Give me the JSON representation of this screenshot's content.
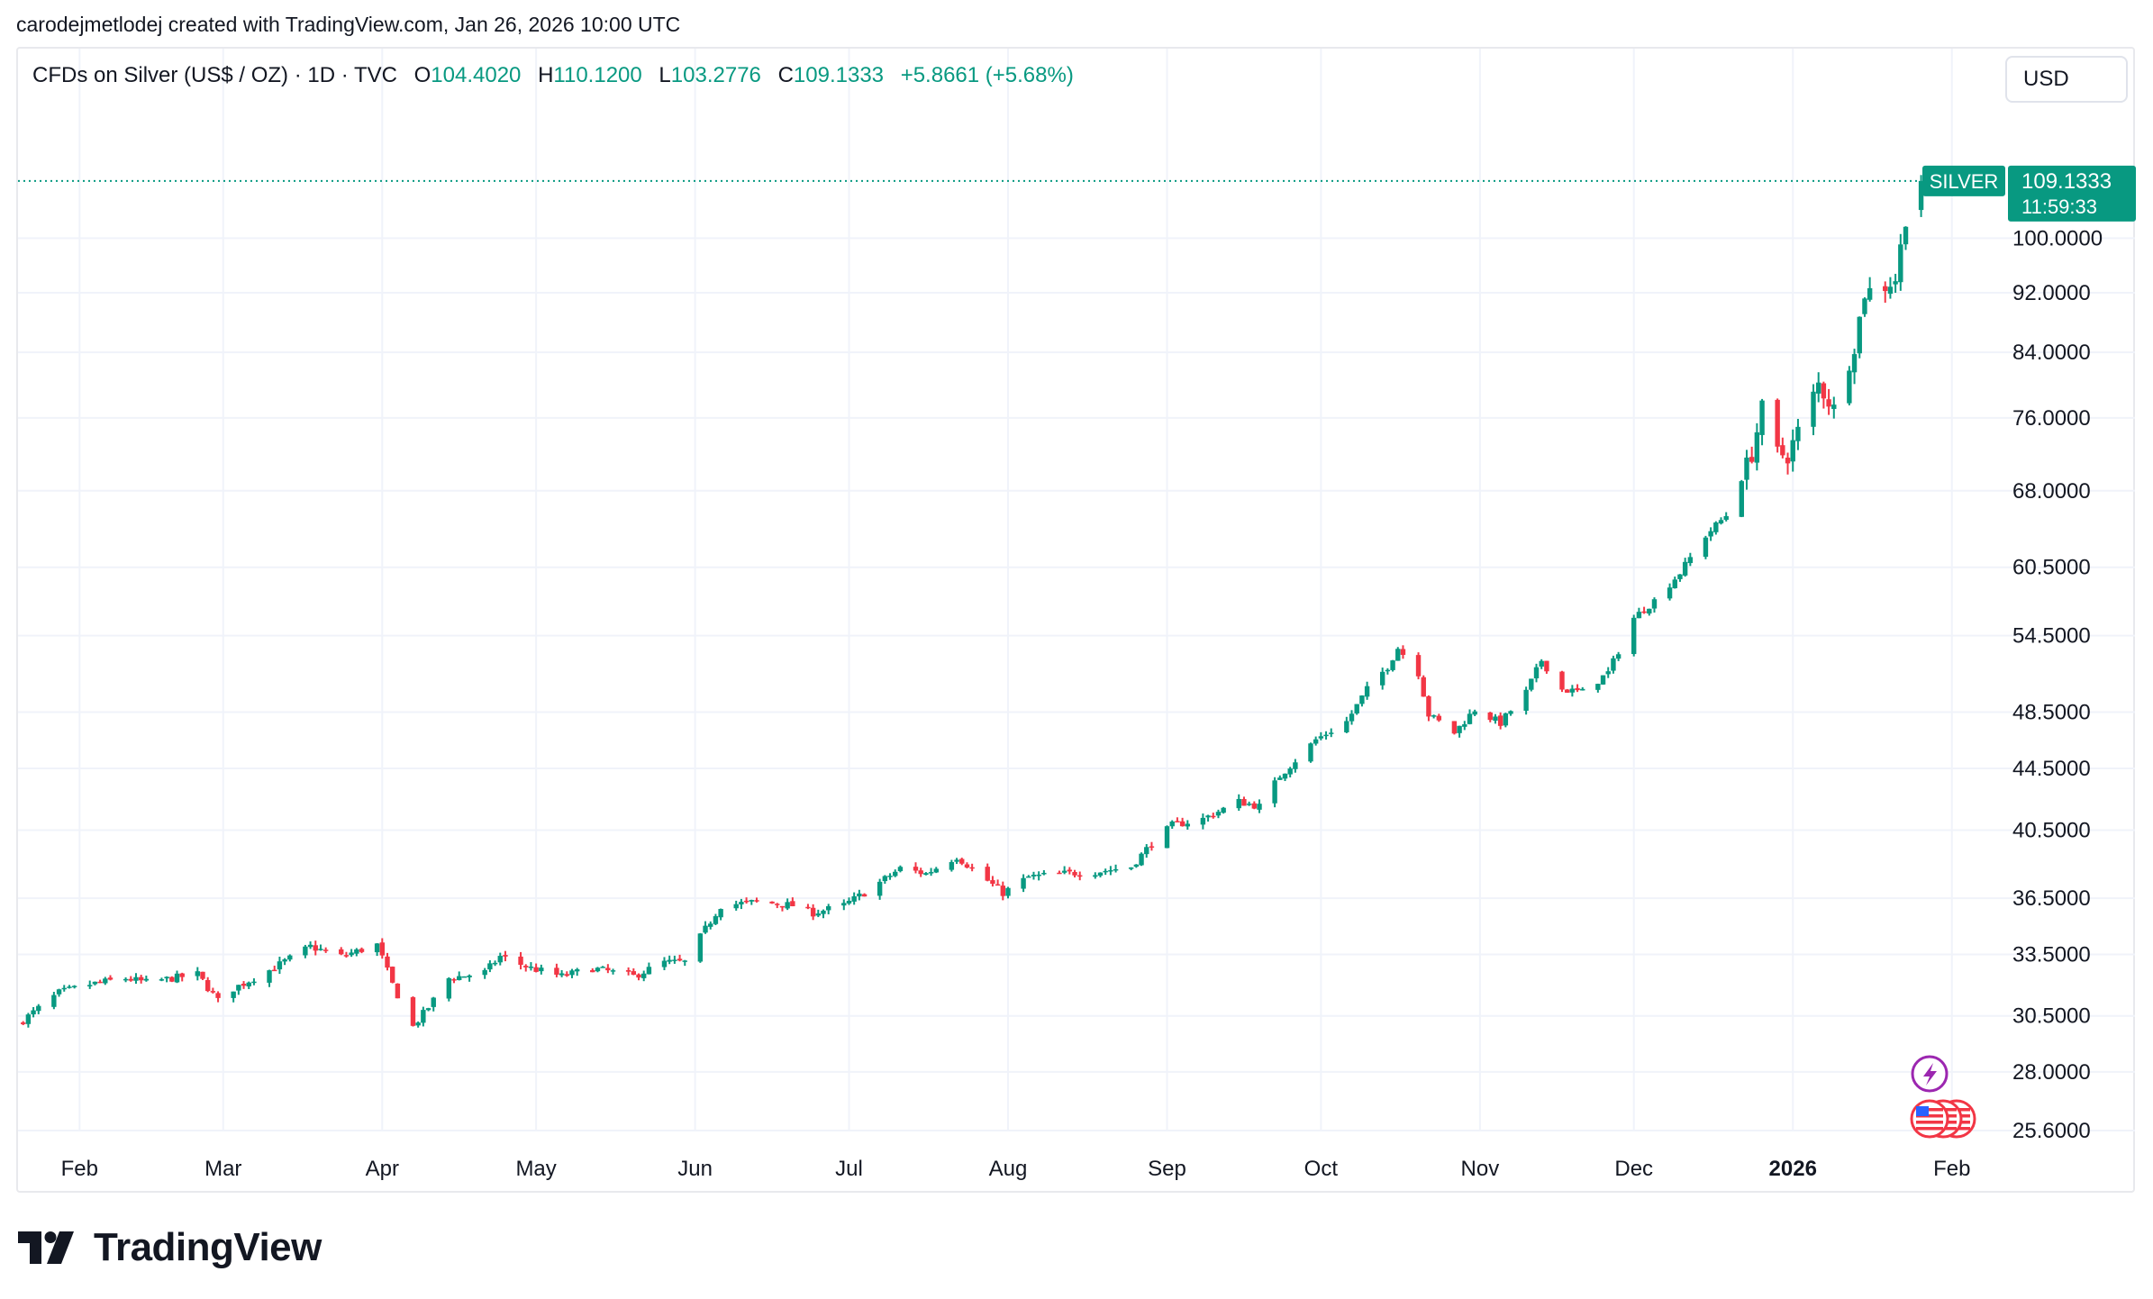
{
  "header": {
    "caption": "carodejmetlodej created with TradingView.com, Jan 26, 2026 10:00 UTC"
  },
  "legend": {
    "symbol": "CFDs on Silver (US$ / OZ) · 1D · TVC",
    "open_label": "O",
    "open": "104.4020",
    "high_label": "H",
    "high": "110.1200",
    "low_label": "L",
    "low": "103.2776",
    "close_label": "C",
    "close": "109.1333",
    "change": "+5.8661 (+5.68%)"
  },
  "currency_button": "USD",
  "price_tag": {
    "name": "SILVER",
    "price": "109.1333",
    "countdown": "11:59:33"
  },
  "brand": {
    "name": "TradingView"
  },
  "colors": {
    "up": "#089981",
    "down": "#f23645",
    "grid": "#f0f3fa",
    "text": "#131722"
  },
  "event_icons": [
    {
      "icon": "lightning-icon"
    },
    {
      "icon": "us-flag-icon"
    }
  ],
  "chart_data": {
    "type": "candlestick",
    "x_range": [
      "2025-01-20",
      "2026-02-10"
    ],
    "x_ticks": [
      {
        "date": "2025-02-01",
        "label": "Feb"
      },
      {
        "date": "2025-03-01",
        "label": "Mar"
      },
      {
        "date": "2025-04-01",
        "label": "Apr"
      },
      {
        "date": "2025-05-01",
        "label": "May"
      },
      {
        "date": "2025-06-01",
        "label": "Jun"
      },
      {
        "date": "2025-07-01",
        "label": "Jul"
      },
      {
        "date": "2025-08-01",
        "label": "Aug"
      },
      {
        "date": "2025-09-01",
        "label": "Sep"
      },
      {
        "date": "2025-10-01",
        "label": "Oct"
      },
      {
        "date": "2025-11-01",
        "label": "Nov"
      },
      {
        "date": "2025-12-01",
        "label": "Dec"
      },
      {
        "date": "2026-01-01",
        "label": "2026",
        "bold": true
      },
      {
        "date": "2026-02-01",
        "label": "Feb"
      }
    ],
    "y_scale": "log",
    "y_range": [
      24.6,
      124
    ],
    "y_ticks": [
      "100.0000",
      "92.0000",
      "84.0000",
      "76.0000",
      "68.0000",
      "60.5000",
      "54.5000",
      "48.5000",
      "44.5000",
      "40.5000",
      "36.5000",
      "33.5000",
      "30.5000",
      "28.0000",
      "25.6000"
    ],
    "last_price": 109.1333,
    "anchors": [
      [
        "2025-01-21",
        30.3
      ],
      [
        "2025-01-28",
        31.6
      ],
      [
        "2025-02-03",
        32.0
      ],
      [
        "2025-02-10",
        32.3
      ],
      [
        "2025-02-14",
        32.1
      ],
      [
        "2025-02-24",
        32.5
      ],
      [
        "2025-02-28",
        31.2
      ],
      [
        "2025-03-03",
        31.8
      ],
      [
        "2025-03-10",
        32.7
      ],
      [
        "2025-03-18",
        33.9
      ],
      [
        "2025-03-24",
        33.4
      ],
      [
        "2025-03-31",
        34.0
      ],
      [
        "2025-04-03",
        32.0
      ],
      [
        "2025-04-07",
        30.0
      ],
      [
        "2025-04-10",
        30.9
      ],
      [
        "2025-04-14",
        32.3
      ],
      [
        "2025-04-21",
        32.6
      ],
      [
        "2025-04-24",
        33.4
      ],
      [
        "2025-04-30",
        32.8
      ],
      [
        "2025-05-06",
        32.4
      ],
      [
        "2025-05-12",
        32.8
      ],
      [
        "2025-05-20",
        32.4
      ],
      [
        "2025-05-26",
        33.1
      ],
      [
        "2025-05-30",
        33.1
      ],
      [
        "2025-06-02",
        34.4
      ],
      [
        "2025-06-06",
        36.1
      ],
      [
        "2025-06-13",
        36.3
      ],
      [
        "2025-06-20",
        36.1
      ],
      [
        "2025-06-24",
        35.7
      ],
      [
        "2025-06-30",
        36.1
      ],
      [
        "2025-07-04",
        36.8
      ],
      [
        "2025-07-11",
        38.2
      ],
      [
        "2025-07-16",
        37.9
      ],
      [
        "2025-07-22",
        38.9
      ],
      [
        "2025-07-25",
        38.2
      ],
      [
        "2025-07-31",
        36.8
      ],
      [
        "2025-08-05",
        37.7
      ],
      [
        "2025-08-12",
        37.9
      ],
      [
        "2025-08-18",
        38.0
      ],
      [
        "2025-08-25",
        38.3
      ],
      [
        "2025-08-29",
        39.7
      ],
      [
        "2025-09-02",
        40.8
      ],
      [
        "2025-09-08",
        41.2
      ],
      [
        "2025-09-15",
        42.3
      ],
      [
        "2025-09-19",
        42.0
      ],
      [
        "2025-09-23",
        44.0
      ],
      [
        "2025-09-30",
        46.5
      ],
      [
        "2025-10-06",
        47.8
      ],
      [
        "2025-10-10",
        50.2
      ],
      [
        "2025-10-14",
        52.0
      ],
      [
        "2025-10-16",
        53.5
      ],
      [
        "2025-10-20",
        51.5
      ],
      [
        "2025-10-22",
        48.3
      ],
      [
        "2025-10-27",
        47.0
      ],
      [
        "2025-10-31",
        48.7
      ],
      [
        "2025-11-05",
        47.7
      ],
      [
        "2025-11-10",
        50.0
      ],
      [
        "2025-11-13",
        52.5
      ],
      [
        "2025-11-17",
        50.2
      ],
      [
        "2025-11-21",
        50.0
      ],
      [
        "2025-11-26",
        51.5
      ],
      [
        "2025-12-01",
        56.0
      ],
      [
        "2025-12-05",
        57.5
      ],
      [
        "2025-12-10",
        60.0
      ],
      [
        "2025-12-15",
        63.5
      ],
      [
        "2025-12-19",
        65.5
      ],
      [
        "2025-12-24",
        72.0
      ],
      [
        "2025-12-26",
        77.0
      ],
      [
        "2025-12-29",
        72.0
      ],
      [
        "2025-12-31",
        71.8
      ],
      [
        "2026-01-06",
        80.0
      ],
      [
        "2026-01-09",
        77.0
      ],
      [
        "2026-01-13",
        85.0
      ],
      [
        "2026-01-15",
        92.0
      ],
      [
        "2026-01-19",
        93.0
      ],
      [
        "2026-01-21",
        94.0
      ],
      [
        "2026-01-23",
        103.3
      ],
      [
        "2026-01-26",
        109.1333
      ]
    ]
  }
}
